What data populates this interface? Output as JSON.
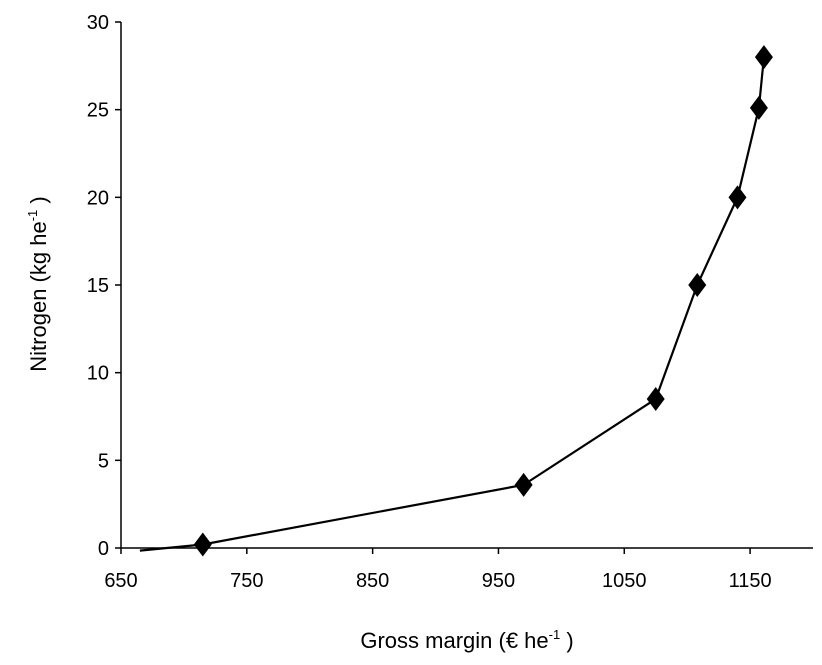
{
  "chart_data": {
    "type": "line",
    "title": "",
    "xlabel": {
      "base": "Gross margin (€ he",
      "sup": "-1",
      "end": " )"
    },
    "ylabel": {
      "base": "Nitrogen (kg he",
      "sup": "-1",
      "end": " )"
    },
    "xlim": [
      650,
      1200
    ],
    "ylim": [
      0,
      30
    ],
    "x_ticks": [
      650,
      750,
      850,
      950,
      1050,
      1150
    ],
    "y_ticks": [
      0,
      5,
      10,
      15,
      20,
      25,
      30
    ],
    "grid": false,
    "legend": "none",
    "series": [
      {
        "marker": "diamond",
        "line_extension": {
          "x": 665,
          "y": -0.15
        },
        "points": [
          {
            "x": 715,
            "y": 0.2
          },
          {
            "x": 970,
            "y": 3.6
          },
          {
            "x": 1075,
            "y": 8.5
          },
          {
            "x": 1108,
            "y": 15.0
          },
          {
            "x": 1140,
            "y": 20.0
          },
          {
            "x": 1157,
            "y": 25.1
          },
          {
            "x": 1161,
            "y": 28.0
          }
        ]
      }
    ]
  },
  "colors": {
    "line": "#000000",
    "marker": "#000000",
    "axis": "#000000"
  }
}
